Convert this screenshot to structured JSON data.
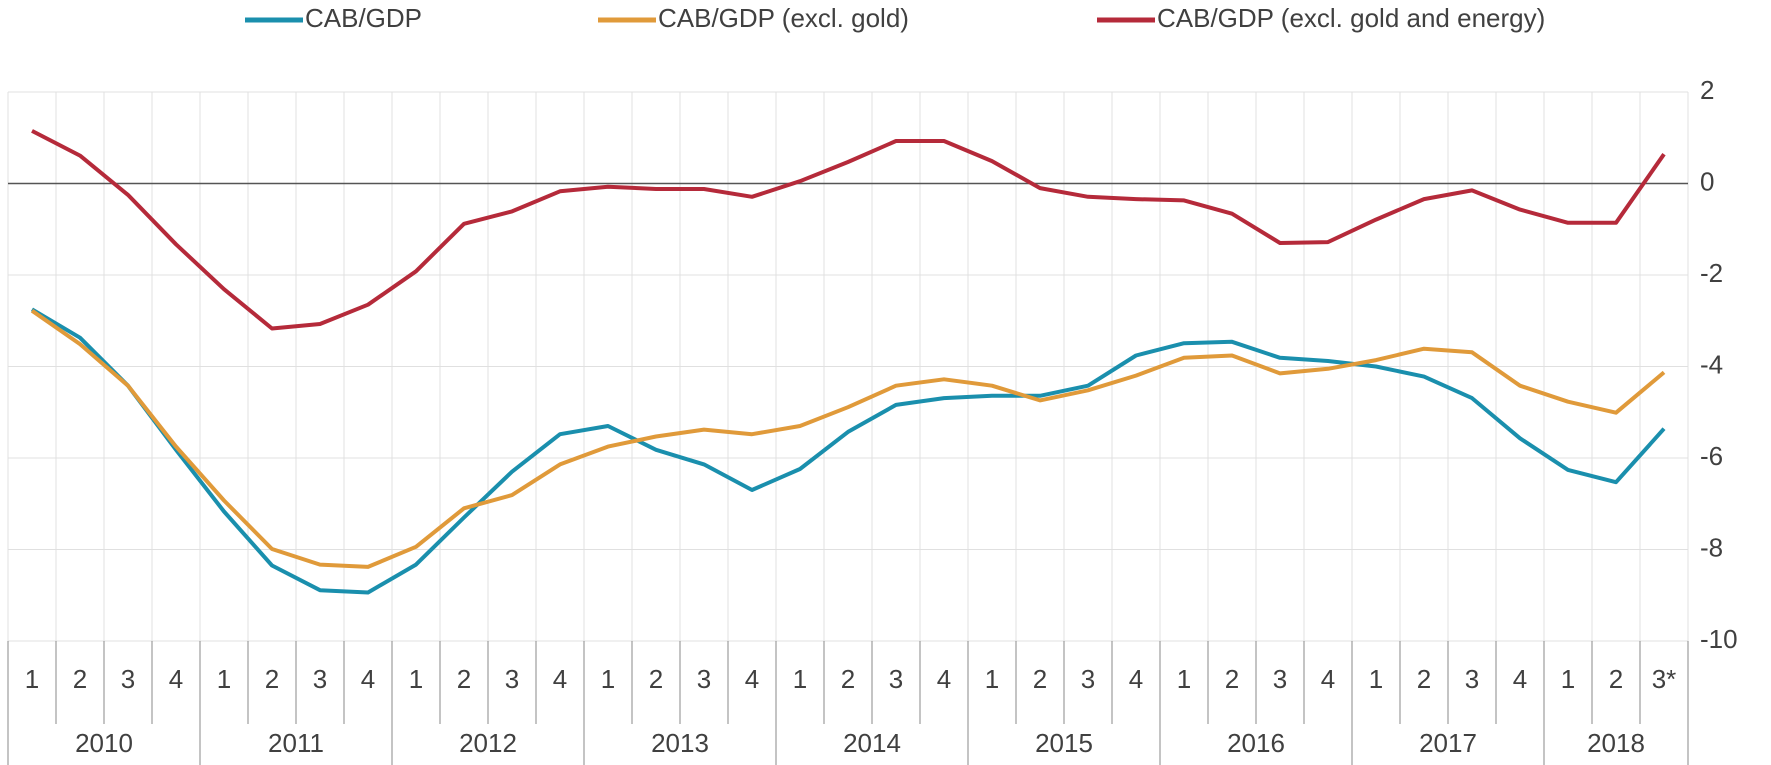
{
  "chart_data": {
    "type": "line",
    "categories": [
      "1",
      "2",
      "3",
      "4",
      "1",
      "2",
      "3",
      "4",
      "1",
      "2",
      "3",
      "4",
      "1",
      "2",
      "3",
      "4",
      "1",
      "2",
      "3",
      "4",
      "1",
      "2",
      "3",
      "4",
      "1",
      "2",
      "3",
      "4",
      "1",
      "2",
      "3",
      "4",
      "1",
      "2",
      "3*"
    ],
    "years": [
      "2010",
      "2011",
      "2012",
      "2013",
      "2014",
      "2015",
      "2016",
      "2017",
      "2018"
    ],
    "series": [
      {
        "name": "CAB/GDP",
        "color": "#1a8fad",
        "values": [
          -2.75,
          -3.37,
          -4.42,
          -5.82,
          -7.17,
          -8.35,
          -8.89,
          -8.94,
          -8.33,
          -7.3,
          -6.3,
          -5.48,
          -5.3,
          -5.82,
          -6.14,
          -6.7,
          -6.24,
          -5.43,
          -4.84,
          -4.69,
          -4.64,
          -4.64,
          -4.42,
          -3.76,
          -3.49,
          -3.46,
          -3.81,
          -3.88,
          -4.0,
          -4.22,
          -4.69,
          -5.57,
          -6.26,
          -6.53,
          -5.36
        ]
      },
      {
        "name": "CAB/GDP (excl. gold)",
        "color": "#e09a3a",
        "values": [
          -2.78,
          -3.51,
          -4.42,
          -5.75,
          -6.93,
          -7.99,
          -8.33,
          -8.38,
          -7.94,
          -7.1,
          -6.81,
          -6.14,
          -5.75,
          -5.53,
          -5.38,
          -5.48,
          -5.3,
          -4.89,
          -4.42,
          -4.28,
          -4.42,
          -4.74,
          -4.52,
          -4.2,
          -3.81,
          -3.76,
          -4.15,
          -4.05,
          -3.86,
          -3.61,
          -3.69,
          -4.42,
          -4.77,
          -5.01,
          -4.13
        ]
      },
      {
        "name": "CAB/GDP (excl. gold and energy)",
        "color": "#b52a3a",
        "values": [
          1.15,
          0.61,
          -0.25,
          -1.33,
          -2.31,
          -3.17,
          -3.07,
          -2.65,
          -1.92,
          -0.88,
          -0.61,
          -0.17,
          -0.07,
          -0.12,
          -0.12,
          -0.29,
          0.05,
          0.47,
          0.93,
          0.93,
          0.49,
          -0.1,
          -0.29,
          -0.34,
          -0.37,
          -0.66,
          -1.3,
          -1.28,
          -0.79,
          -0.34,
          -0.15,
          -0.57,
          -0.86,
          -0.86,
          0.64
        ]
      }
    ],
    "ylim": [
      -10,
      2
    ],
    "yticks": [
      2,
      0,
      -2,
      -4,
      -6,
      -8,
      -10
    ],
    "grid": true
  }
}
